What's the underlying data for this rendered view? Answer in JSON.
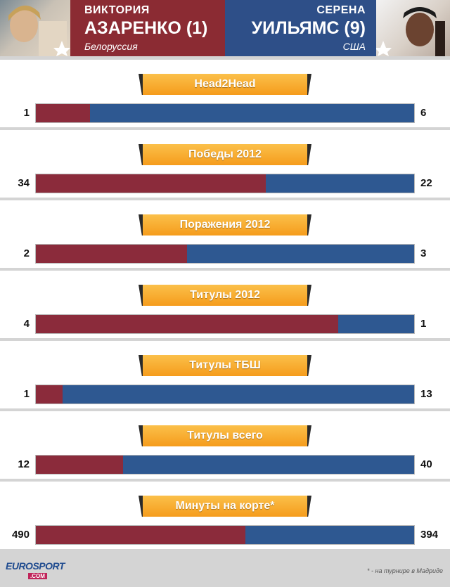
{
  "left_player": {
    "first_name": "ВИКТОРИЯ",
    "last_name": "АЗАРЕНКО (1)",
    "country": "Белоруссия",
    "color": "#8b2b3b"
  },
  "right_player": {
    "first_name": "СЕРЕНА",
    "last_name": "УИЛЬЯМС (9)",
    "country": "США",
    "color": "#2e5891"
  },
  "accent_color": "#f7a21e",
  "chart_data": {
    "type": "bar",
    "categories": [
      "Head2Head",
      "Победы 2012",
      "Поражения 2012",
      "Титулы 2012",
      "Титулы ТБШ",
      "Титулы всего",
      "Минуты на корте*"
    ],
    "series": [
      {
        "name": "АЗАРЕНКО (1)",
        "values": [
          1,
          34,
          2,
          4,
          1,
          12,
          490
        ]
      },
      {
        "name": "УИЛЬЯМС (9)",
        "values": [
          6,
          22,
          3,
          1,
          13,
          40,
          394
        ]
      }
    ]
  },
  "footer": {
    "logo_text": "EUROSPORT",
    "logo_domain": ".COM",
    "note": "* - на турнире в Мадриде"
  }
}
